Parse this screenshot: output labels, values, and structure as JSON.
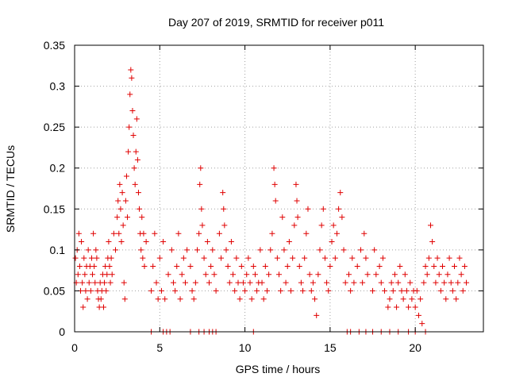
{
  "chart_data": {
    "type": "scatter",
    "title": "Day 207 of 2019, SRMTID for receiver p011",
    "xlabel": "GPS time / hours",
    "ylabel": "SRMTID / TECUs",
    "xlim": [
      0,
      24
    ],
    "ylim": [
      0,
      0.35
    ],
    "x_ticks": [
      0,
      5,
      10,
      15,
      20
    ],
    "x_tick_labels": [
      "0",
      "5",
      "10",
      "15",
      "20"
    ],
    "y_ticks": [
      0,
      0.05,
      0.1,
      0.15,
      0.2,
      0.25,
      0.3,
      0.35
    ],
    "y_tick_labels": [
      "0",
      "0.05",
      "0.1",
      "0.15",
      "0.2",
      "0.25",
      "0.3",
      "0.35"
    ],
    "grid": true,
    "marker": "plus",
    "color": "#e00000",
    "series": [
      {
        "name": "SRMTID",
        "points": [
          [
            0.05,
            0.09
          ],
          [
            0.1,
            0.06
          ],
          [
            0.15,
            0.1
          ],
          [
            0.2,
            0.07
          ],
          [
            0.25,
            0.12
          ],
          [
            0.3,
            0.08
          ],
          [
            0.35,
            0.05
          ],
          [
            0.4,
            0.11
          ],
          [
            0.45,
            0.06
          ],
          [
            0.5,
            0.03
          ],
          [
            0.55,
            0.09
          ],
          [
            0.6,
            0.07
          ],
          [
            0.65,
            0.05
          ],
          [
            0.7,
            0.08
          ],
          [
            0.75,
            0.04
          ],
          [
            0.8,
            0.1
          ],
          [
            0.85,
            0.06
          ],
          [
            0.9,
            0.08
          ],
          [
            0.95,
            0.05
          ],
          [
            1.0,
            0.09
          ],
          [
            1.05,
            0.07
          ],
          [
            1.1,
            0.12
          ],
          [
            1.15,
            0.08
          ],
          [
            1.2,
            0.06
          ],
          [
            1.25,
            0.1
          ],
          [
            1.3,
            0.09
          ],
          [
            1.35,
            0.05
          ],
          [
            1.4,
            0.04
          ],
          [
            1.45,
            0.03
          ],
          [
            1.5,
            0.06
          ],
          [
            1.55,
            0.04
          ],
          [
            1.6,
            0.05
          ],
          [
            1.65,
            0.07
          ],
          [
            1.7,
            0.03
          ],
          [
            1.75,
            0.06
          ],
          [
            1.8,
            0.08
          ],
          [
            1.85,
            0.05
          ],
          [
            1.9,
            0.07
          ],
          [
            1.95,
            0.09
          ],
          [
            2.0,
            0.11
          ],
          [
            2.05,
            0.08
          ],
          [
            2.1,
            0.06
          ],
          [
            2.15,
            0.09
          ],
          [
            2.2,
            0.07
          ],
          [
            2.3,
            0.12
          ],
          [
            2.4,
            0.1
          ],
          [
            2.5,
            0.14
          ],
          [
            2.55,
            0.16
          ],
          [
            2.6,
            0.12
          ],
          [
            2.65,
            0.18
          ],
          [
            2.7,
            0.15
          ],
          [
            2.75,
            0.11
          ],
          [
            2.8,
            0.17
          ],
          [
            2.85,
            0.13
          ],
          [
            2.9,
            0.06
          ],
          [
            2.95,
            0.04
          ],
          [
            3.0,
            0.16
          ],
          [
            3.05,
            0.19
          ],
          [
            3.1,
            0.14
          ],
          [
            3.15,
            0.22
          ],
          [
            3.2,
            0.25
          ],
          [
            3.25,
            0.29
          ],
          [
            3.3,
            0.32
          ],
          [
            3.35,
            0.31
          ],
          [
            3.4,
            0.27
          ],
          [
            3.45,
            0.24
          ],
          [
            3.5,
            0.2
          ],
          [
            3.55,
            0.18
          ],
          [
            3.6,
            0.22
          ],
          [
            3.65,
            0.26
          ],
          [
            3.7,
            0.21
          ],
          [
            3.75,
            0.17
          ],
          [
            3.8,
            0.15
          ],
          [
            3.85,
            0.12
          ],
          [
            3.9,
            0.1
          ],
          [
            3.95,
            0.14
          ],
          [
            4.0,
            0.09
          ],
          [
            4.05,
            0.12
          ],
          [
            4.1,
            0.08
          ],
          [
            4.2,
            0.11
          ],
          [
            4.5,
            0.05
          ],
          [
            4.6,
            0.08
          ],
          [
            4.7,
            0.12
          ],
          [
            4.8,
            0.06
          ],
          [
            4.9,
            0.04
          ],
          [
            5.0,
            0.09
          ],
          [
            5.1,
            0.05
          ],
          [
            5.2,
            0.11
          ],
          [
            5.3,
            0.04
          ],
          [
            5.5,
            0.07
          ],
          [
            5.7,
            0.1
          ],
          [
            5.8,
            0.06
          ],
          [
            5.9,
            0.05
          ],
          [
            6.0,
            0.08
          ],
          [
            6.1,
            0.12
          ],
          [
            6.2,
            0.04
          ],
          [
            6.3,
            0.07
          ],
          [
            6.4,
            0.09
          ],
          [
            6.5,
            0.06
          ],
          [
            6.6,
            0.1
          ],
          [
            6.8,
            0.08
          ],
          [
            6.9,
            0.05
          ],
          [
            7.0,
            0.04
          ],
          [
            7.1,
            0.06
          ],
          [
            7.2,
            0.1
          ],
          [
            7.3,
            0.12
          ],
          [
            7.35,
            0.18
          ],
          [
            7.4,
            0.2
          ],
          [
            7.45,
            0.15
          ],
          [
            7.5,
            0.13
          ],
          [
            7.6,
            0.09
          ],
          [
            7.7,
            0.07
          ],
          [
            7.8,
            0.11
          ],
          [
            7.9,
            0.06
          ],
          [
            8.0,
            0.08
          ],
          [
            8.1,
            0.1
          ],
          [
            8.2,
            0.07
          ],
          [
            8.3,
            0.05
          ],
          [
            8.5,
            0.12
          ],
          [
            8.6,
            0.09
          ],
          [
            8.7,
            0.17
          ],
          [
            8.75,
            0.15
          ],
          [
            8.8,
            0.13
          ],
          [
            8.9,
            0.1
          ],
          [
            9.0,
            0.08
          ],
          [
            9.1,
            0.06
          ],
          [
            9.2,
            0.11
          ],
          [
            9.3,
            0.07
          ],
          [
            9.4,
            0.05
          ],
          [
            9.5,
            0.09
          ],
          [
            9.6,
            0.06
          ],
          [
            9.7,
            0.04
          ],
          [
            9.8,
            0.08
          ],
          [
            9.9,
            0.06
          ],
          [
            10.0,
            0.05
          ],
          [
            10.1,
            0.07
          ],
          [
            10.2,
            0.09
          ],
          [
            10.3,
            0.06
          ],
          [
            10.4,
            0.04
          ],
          [
            10.5,
            0.08
          ],
          [
            10.6,
            0.07
          ],
          [
            10.7,
            0.05
          ],
          [
            10.8,
            0.06
          ],
          [
            10.9,
            0.1
          ],
          [
            11.0,
            0.06
          ],
          [
            11.1,
            0.04
          ],
          [
            11.2,
            0.08
          ],
          [
            11.3,
            0.05
          ],
          [
            11.4,
            0.07
          ],
          [
            11.5,
            0.1
          ],
          [
            11.6,
            0.12
          ],
          [
            11.7,
            0.2
          ],
          [
            11.75,
            0.18
          ],
          [
            11.8,
            0.16
          ],
          [
            11.9,
            0.09
          ],
          [
            12.0,
            0.07
          ],
          [
            12.1,
            0.05
          ],
          [
            12.2,
            0.14
          ],
          [
            12.3,
            0.1
          ],
          [
            12.4,
            0.06
          ],
          [
            12.5,
            0.08
          ],
          [
            12.6,
            0.11
          ],
          [
            12.7,
            0.05
          ],
          [
            12.8,
            0.09
          ],
          [
            12.9,
            0.13
          ],
          [
            13.0,
            0.18
          ],
          [
            13.05,
            0.16
          ],
          [
            13.1,
            0.14
          ],
          [
            13.2,
            0.08
          ],
          [
            13.3,
            0.06
          ],
          [
            13.4,
            0.05
          ],
          [
            13.5,
            0.09
          ],
          [
            13.6,
            0.12
          ],
          [
            13.7,
            0.15
          ],
          [
            13.8,
            0.07
          ],
          [
            13.9,
            0.05
          ],
          [
            14.0,
            0.06
          ],
          [
            14.1,
            0.04
          ],
          [
            14.2,
            0.02
          ],
          [
            14.3,
            0.07
          ],
          [
            14.4,
            0.1
          ],
          [
            14.5,
            0.13
          ],
          [
            14.6,
            0.15
          ],
          [
            14.7,
            0.09
          ],
          [
            14.8,
            0.06
          ],
          [
            14.9,
            0.05
          ],
          [
            15.0,
            0.08
          ],
          [
            15.1,
            0.11
          ],
          [
            15.2,
            0.13
          ],
          [
            15.3,
            0.09
          ],
          [
            15.4,
            0.12
          ],
          [
            15.5,
            0.15
          ],
          [
            15.6,
            0.17
          ],
          [
            15.7,
            0.14
          ],
          [
            15.8,
            0.1
          ],
          [
            15.9,
            0.06
          ],
          [
            16.1,
            0.07
          ],
          [
            16.2,
            0.05
          ],
          [
            16.3,
            0.09
          ],
          [
            16.4,
            0.06
          ],
          [
            16.6,
            0.08
          ],
          [
            16.8,
            0.1
          ],
          [
            16.9,
            0.06
          ],
          [
            17.0,
            0.12
          ],
          [
            17.1,
            0.09
          ],
          [
            17.2,
            0.07
          ],
          [
            17.5,
            0.05
          ],
          [
            17.6,
            0.1
          ],
          [
            17.7,
            0.07
          ],
          [
            17.9,
            0.08
          ],
          [
            18.0,
            0.06
          ],
          [
            18.1,
            0.09
          ],
          [
            18.2,
            0.05
          ],
          [
            18.4,
            0.03
          ],
          [
            18.5,
            0.04
          ],
          [
            18.6,
            0.06
          ],
          [
            18.7,
            0.05
          ],
          [
            18.8,
            0.07
          ],
          [
            18.9,
            0.03
          ],
          [
            19.0,
            0.06
          ],
          [
            19.1,
            0.08
          ],
          [
            19.2,
            0.05
          ],
          [
            19.3,
            0.04
          ],
          [
            19.4,
            0.07
          ],
          [
            19.5,
            0.05
          ],
          [
            19.6,
            0.03
          ],
          [
            19.7,
            0.06
          ],
          [
            19.8,
            0.04
          ],
          [
            19.9,
            0.05
          ],
          [
            20.0,
            0.03
          ],
          [
            20.1,
            0.05
          ],
          [
            20.2,
            0.02
          ],
          [
            20.3,
            0.04
          ],
          [
            20.4,
            0.01
          ],
          [
            20.5,
            0.06
          ],
          [
            20.6,
            0.08
          ],
          [
            20.7,
            0.07
          ],
          [
            20.8,
            0.09
          ],
          [
            20.9,
            0.13
          ],
          [
            21.0,
            0.11
          ],
          [
            21.1,
            0.08
          ],
          [
            21.2,
            0.06
          ],
          [
            21.3,
            0.09
          ],
          [
            21.4,
            0.07
          ],
          [
            21.5,
            0.05
          ],
          [
            21.6,
            0.08
          ],
          [
            21.7,
            0.06
          ],
          [
            21.8,
            0.04
          ],
          [
            21.9,
            0.07
          ],
          [
            22.0,
            0.09
          ],
          [
            22.1,
            0.06
          ],
          [
            22.2,
            0.05
          ],
          [
            22.3,
            0.08
          ],
          [
            22.4,
            0.04
          ],
          [
            22.5,
            0.06
          ],
          [
            22.6,
            0.09
          ],
          [
            22.7,
            0.07
          ],
          [
            22.8,
            0.05
          ],
          [
            22.9,
            0.08
          ],
          [
            23.0,
            0.06
          ],
          [
            4.5,
            0
          ],
          [
            5.2,
            0
          ],
          [
            5.4,
            0
          ],
          [
            5.6,
            0
          ],
          [
            6.8,
            0
          ],
          [
            7.3,
            0
          ],
          [
            7.6,
            0
          ],
          [
            7.9,
            0
          ],
          [
            8.1,
            0
          ],
          [
            8.3,
            0
          ],
          [
            10.5,
            0
          ],
          [
            16.0,
            0
          ],
          [
            16.2,
            0
          ],
          [
            16.7,
            0
          ],
          [
            17.1,
            0
          ],
          [
            17.5,
            0
          ],
          [
            18.0,
            0
          ],
          [
            18.5,
            0
          ],
          [
            19.0,
            0
          ],
          [
            19.6,
            0
          ],
          [
            20.0,
            0
          ],
          [
            20.6,
            0
          ]
        ]
      }
    ]
  }
}
